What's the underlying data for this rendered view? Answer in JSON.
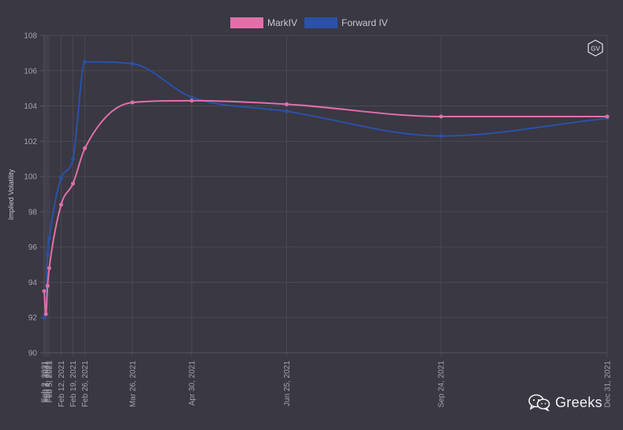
{
  "chart_data": {
    "type": "line",
    "title": "",
    "xlabel": "",
    "ylabel": "Implied Volatility",
    "ylim": [
      90,
      108
    ],
    "yticks": [
      90,
      92,
      94,
      96,
      98,
      100,
      102,
      104,
      106,
      108
    ],
    "legend_position": "top-center",
    "x_dates": [
      "2021-02-02",
      "2021-02-03",
      "2021-02-04",
      "2021-02-05",
      "2021-02-12",
      "2021-02-19",
      "2021-02-26",
      "2021-03-26",
      "2021-04-30",
      "2021-06-25",
      "2021-09-24",
      "2021-12-31"
    ],
    "x_tick_labels": [
      "Feb 2, 2021",
      "Feb 3, 2021",
      "Feb 4, 2021",
      "Feb 5, 2021",
      "Feb 12, 2021",
      "Feb 19, 2021",
      "Feb 26, 2021",
      "Mar 26, 2021",
      "Apr 30, 2021",
      "Jun 25, 2021",
      "Sep 24, 2021",
      "Dec 31, 2021"
    ],
    "series": [
      {
        "name": "MarkIV",
        "color": "#e16fa8",
        "values": [
          93.5,
          92.2,
          93.8,
          94.8,
          98.4,
          99.6,
          101.6,
          104.2,
          104.3,
          104.1,
          103.4,
          103.4
        ]
      },
      {
        "name": "Forward IV",
        "color": "#2b51a8",
        "values": [
          92.0,
          92.2,
          95.6,
          96.5,
          99.9,
          101.0,
          106.5,
          106.4,
          104.5,
          103.7,
          102.3,
          103.3
        ]
      }
    ]
  },
  "badge": {
    "text": "GV"
  },
  "watermark": {
    "text": "Greeks",
    "icon": "wechat-icon"
  }
}
